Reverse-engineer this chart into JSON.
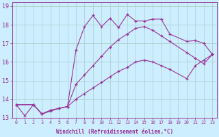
{
  "xlabel": "Windchill (Refroidissement éolien,°C)",
  "bg_color": "#cceeff",
  "line_color": "#993399",
  "grid_color": "#aacccc",
  "xmin": 0,
  "xmax": 23,
  "ymin": 13,
  "ymax": 19,
  "line1_x": [
    0,
    1,
    2,
    3,
    4,
    5,
    6,
    7,
    8,
    9,
    10,
    11,
    12,
    13,
    14,
    15,
    16,
    17,
    18,
    20,
    21,
    22,
    23
  ],
  "line1_y": [
    13.7,
    13.1,
    13.7,
    13.2,
    13.35,
    13.5,
    13.6,
    16.65,
    17.9,
    18.5,
    17.9,
    18.35,
    17.85,
    18.55,
    18.2,
    18.2,
    18.3,
    18.3,
    17.5,
    17.1,
    17.15,
    17.0,
    16.4
  ],
  "line2_x": [
    0,
    2,
    3,
    4,
    5,
    6,
    7,
    8,
    9,
    10,
    11,
    12,
    13,
    14,
    15,
    16,
    17,
    18,
    20,
    21,
    22,
    23
  ],
  "line2_y": [
    13.7,
    13.7,
    13.2,
    13.4,
    13.5,
    13.6,
    14.8,
    15.3,
    15.8,
    16.3,
    16.8,
    17.2,
    17.5,
    17.8,
    17.9,
    17.7,
    17.4,
    17.1,
    16.5,
    16.2,
    15.9,
    16.4
  ],
  "line3_x": [
    0,
    2,
    3,
    4,
    5,
    6,
    7,
    8,
    9,
    10,
    11,
    12,
    13,
    14,
    15,
    16,
    17,
    18,
    20,
    21,
    22,
    23
  ],
  "line3_y": [
    13.7,
    13.7,
    13.2,
    13.4,
    13.5,
    13.6,
    14.0,
    14.3,
    14.6,
    14.9,
    15.2,
    15.5,
    15.7,
    16.0,
    16.1,
    16.0,
    15.8,
    15.6,
    15.1,
    15.8,
    16.1,
    16.4
  ]
}
